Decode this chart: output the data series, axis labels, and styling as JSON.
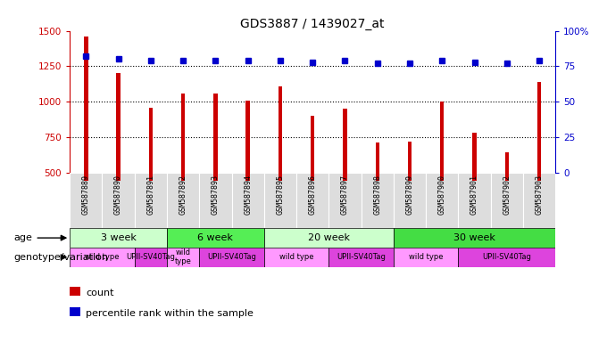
{
  "title": "GDS3887 / 1439027_at",
  "samples": [
    "GSM587889",
    "GSM587890",
    "GSM587891",
    "GSM587892",
    "GSM587893",
    "GSM587894",
    "GSM587895",
    "GSM587896",
    "GSM587897",
    "GSM587898",
    "GSM587899",
    "GSM587900",
    "GSM587901",
    "GSM587902",
    "GSM587903"
  ],
  "counts": [
    1460,
    1200,
    960,
    1055,
    1055,
    1005,
    1110,
    900,
    950,
    715,
    720,
    1000,
    780,
    640,
    1140
  ],
  "percentiles": [
    82,
    80,
    79,
    79,
    79,
    79,
    79,
    78,
    79,
    77,
    77,
    79,
    78,
    77,
    79
  ],
  "ylim_left": [
    500,
    1500
  ],
  "ylim_right": [
    0,
    100
  ],
  "yticks_left": [
    500,
    750,
    1000,
    1250,
    1500
  ],
  "yticks_right": [
    0,
    25,
    50,
    75,
    100
  ],
  "bar_color": "#cc0000",
  "dot_color": "#0000cc",
  "age_groups": [
    {
      "label": "3 week",
      "start": 0,
      "end": 3,
      "color": "#ccffcc"
    },
    {
      "label": "6 week",
      "start": 3,
      "end": 6,
      "color": "#55ee55"
    },
    {
      "label": "20 week",
      "start": 6,
      "end": 10,
      "color": "#ccffcc"
    },
    {
      "label": "30 week",
      "start": 10,
      "end": 15,
      "color": "#44dd44"
    }
  ],
  "genotype_groups": [
    {
      "label": "wild type",
      "start": 0,
      "end": 2,
      "color": "#ff99ff"
    },
    {
      "label": "UPII-SV40Tag",
      "start": 2,
      "end": 3,
      "color": "#dd44dd"
    },
    {
      "label": "wild\ntype",
      "start": 3,
      "end": 4,
      "color": "#ff99ff"
    },
    {
      "label": "UPII-SV40Tag",
      "start": 4,
      "end": 6,
      "color": "#dd44dd"
    },
    {
      "label": "wild type",
      "start": 6,
      "end": 8,
      "color": "#ff99ff"
    },
    {
      "label": "UPII-SV40Tag",
      "start": 8,
      "end": 10,
      "color": "#dd44dd"
    },
    {
      "label": "wild type",
      "start": 10,
      "end": 12,
      "color": "#ff99ff"
    },
    {
      "label": "UPII-SV40Tag",
      "start": 12,
      "end": 15,
      "color": "#dd44dd"
    }
  ],
  "sample_bg_color": "#dddddd",
  "legend_items": [
    {
      "label": "count",
      "color": "#cc0000"
    },
    {
      "label": "percentile rank within the sample",
      "color": "#0000cc"
    }
  ],
  "grid_lines": [
    750,
    1000,
    1250
  ],
  "bar_width": 0.12
}
